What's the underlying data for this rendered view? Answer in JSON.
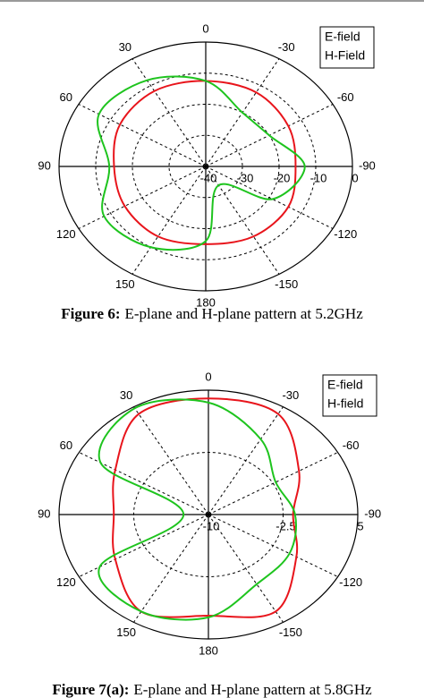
{
  "chart_data": [
    {
      "type": "polar",
      "caption_label": "Figure 6:",
      "caption": "E-plane and H-plane pattern at 5.2GHz",
      "theta": [
        0,
        30,
        60,
        90,
        120,
        150,
        180,
        210,
        240,
        270,
        300,
        330
      ],
      "thetaticks": [
        0,
        30,
        60,
        90,
        120,
        150,
        180,
        -150,
        -120,
        -90,
        -60,
        -30
      ],
      "rlim": [
        -40,
        0
      ],
      "rticks": [
        -40,
        -30,
        -20,
        -10,
        0
      ],
      "series": [
        {
          "name": "E-field",
          "color": "#e8141b",
          "values": [
            -12.5,
            -12,
            -13,
            -15,
            -14.5,
            -14,
            -15,
            -14,
            -14,
            -15.5,
            -14,
            -12.5
          ]
        },
        {
          "name": "H-Field",
          "color": "#1ec41e",
          "values": [
            -12.5,
            -8,
            -6.4,
            -13.7,
            -8,
            -10,
            -16,
            -33,
            -19,
            -13,
            -20,
            -20
          ]
        }
      ]
    },
    {
      "type": "polar",
      "caption_label": "Figure 7(a):",
      "caption": "E-plane and H-plane pattern at 5.8GHz",
      "theta": [
        0,
        30,
        60,
        90,
        120,
        150,
        180,
        210,
        240,
        270,
        300,
        330
      ],
      "thetaticks": [
        0,
        30,
        60,
        90,
        120,
        150,
        180,
        -150,
        -120,
        -90,
        -60,
        -30
      ],
      "rlim": [
        -10,
        5
      ],
      "rticks": [
        -10,
        -2.5,
        5
      ],
      "series": [
        {
          "name": "E-field",
          "color": "#e8141b",
          "values": [
            4,
            4,
            0.8,
            -0.5,
            0.8,
            3.5,
            2.2,
            3.5,
            0.2,
            -1.5,
            0.5,
            4
          ]
        },
        {
          "name": "H-field",
          "color": "#1ec41e",
          "values": [
            3.5,
            4.8,
            2.5,
            -7.5,
            2.6,
            3.5,
            2.4,
            -0.3,
            -0.6,
            -1.3,
            -2.2,
            0.5
          ]
        }
      ]
    }
  ]
}
